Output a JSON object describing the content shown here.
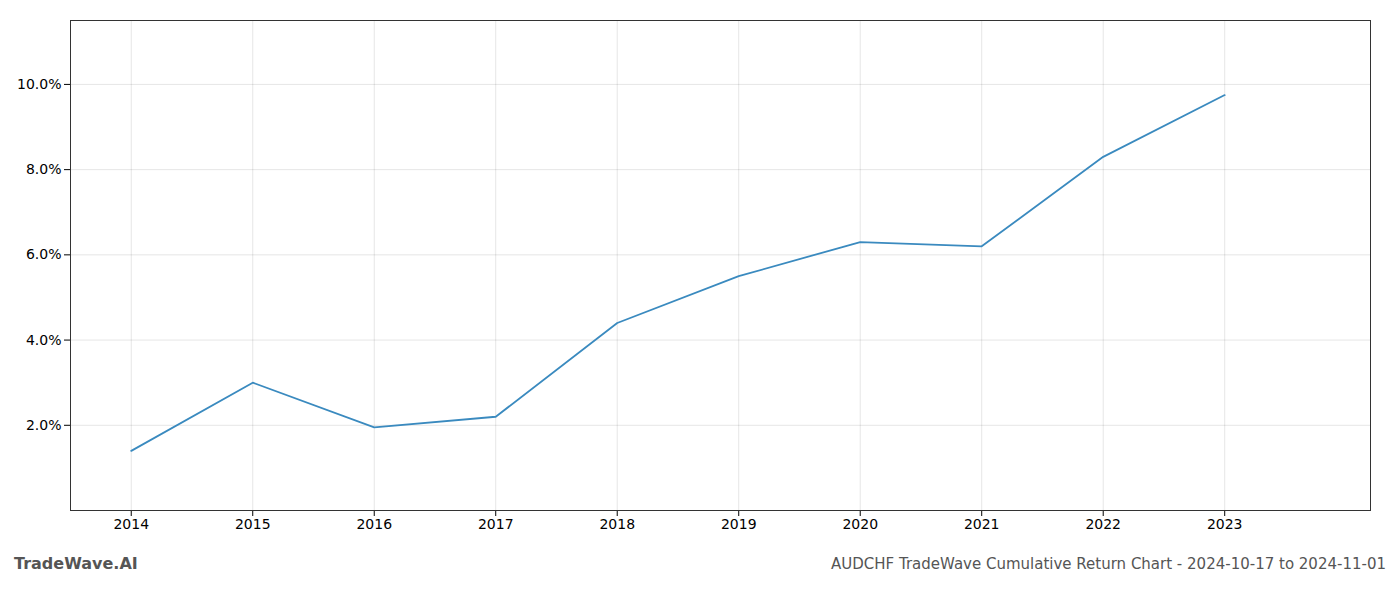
{
  "chart_data": {
    "type": "line",
    "title": "AUDCHF TradeWave Cumulative Return Chart - 2024-10-17 to 2024-11-01",
    "annotations": [
      "TradeWave.AI"
    ],
    "x": [
      2014,
      2015,
      2016,
      2017,
      2018,
      2019,
      2020,
      2021,
      2022,
      2023
    ],
    "values": [
      1.4,
      3.0,
      1.95,
      2.2,
      4.4,
      5.5,
      6.3,
      6.2,
      8.3,
      9.75
    ],
    "color": "#3a8abf",
    "xlim": [
      2013.5,
      2024.2
    ],
    "xticks": [
      2014,
      2015,
      2016,
      2017,
      2018,
      2019,
      2020,
      2021,
      2022,
      2023
    ],
    "ylim": [
      0.0,
      11.5
    ],
    "yticks": [
      {
        "value": 2.0,
        "label": "2.0%"
      },
      {
        "value": 4.0,
        "label": "4.0%"
      },
      {
        "value": 6.0,
        "label": "6.0%"
      },
      {
        "value": 8.0,
        "label": "8.0%"
      },
      {
        "value": 10.0,
        "label": "10.0%"
      }
    ],
    "grid": true
  }
}
